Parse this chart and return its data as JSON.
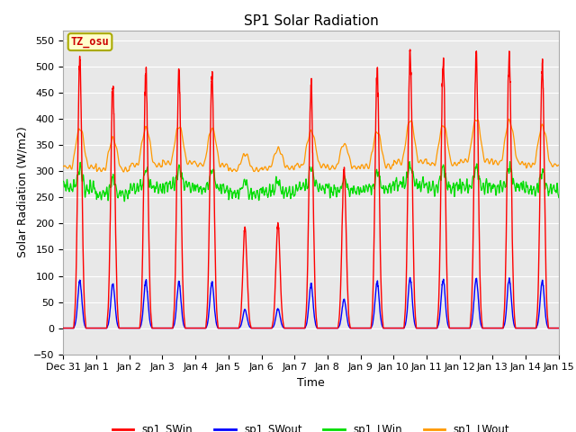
{
  "title": "SP1 Solar Radiation",
  "xlabel": "Time",
  "ylabel": "Solar Radiation (W/m2)",
  "ylim": [
    -50,
    570
  ],
  "yticks": [
    -50,
    0,
    50,
    100,
    150,
    200,
    250,
    300,
    350,
    400,
    450,
    500,
    550
  ],
  "num_days": 15,
  "tz_label": "TZ_osu",
  "tz_color": "#cc0000",
  "tz_bg": "#ffffcc",
  "tz_border": "#aaaa00",
  "colors": {
    "sp1_SWin": "#ff0000",
    "sp1_SWout": "#0000ff",
    "sp1_LWin": "#00dd00",
    "sp1_LWout": "#ff9900"
  },
  "background_color": "#e8e8e8",
  "grid_color": "#ffffff",
  "peak_SWin": [
    510,
    465,
    490,
    490,
    480,
    190,
    200,
    460,
    305,
    490,
    525,
    510,
    525,
    525,
    505
  ],
  "peak_SWout": [
    90,
    85,
    90,
    88,
    87,
    35,
    37,
    83,
    55,
    88,
    95,
    92,
    95,
    95,
    90
  ],
  "lwin_base": [
    270,
    255,
    268,
    272,
    268,
    258,
    262,
    268,
    262,
    266,
    274,
    268,
    272,
    270,
    265
  ],
  "lwout_base": [
    308,
    303,
    312,
    316,
    312,
    302,
    307,
    312,
    307,
    310,
    318,
    314,
    320,
    317,
    312
  ],
  "lwin_amp": [
    35,
    30,
    35,
    35,
    35,
    20,
    20,
    35,
    25,
    35,
    40,
    40,
    40,
    40,
    35
  ],
  "lwout_amp": [
    75,
    60,
    70,
    70,
    70,
    30,
    35,
    65,
    45,
    65,
    80,
    75,
    80,
    80,
    75
  ],
  "tick_labels": [
    "Dec 31",
    "Jan 1",
    "Jan 2",
    "Jan 3",
    "Jan 4",
    "Jan 5",
    "Jan 6",
    "Jan 7",
    "Jan 8",
    "Jan 9",
    "Jan 10",
    "Jan 11",
    "Jan 12",
    "Jan 13",
    "Jan 14",
    "Jan 15"
  ]
}
